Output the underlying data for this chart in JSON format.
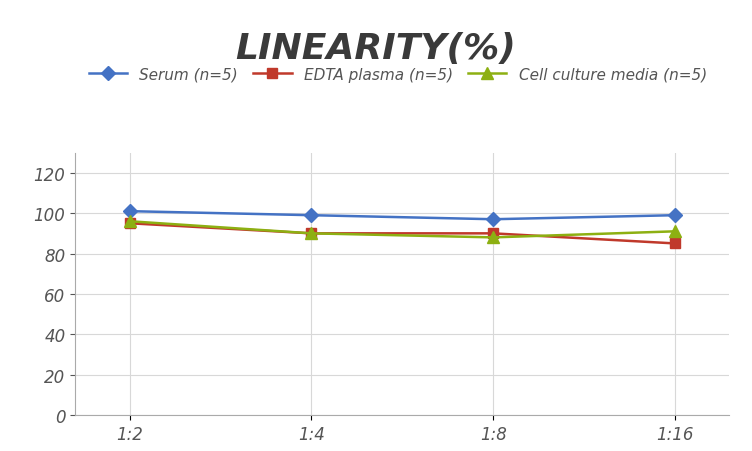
{
  "title": "LINEARITY(%)",
  "title_fontsize": 26,
  "title_fontstyle": "italic",
  "title_fontweight": "bold",
  "title_color": "#3a3a3a",
  "x_labels": [
    "1:2",
    "1:4",
    "1:8",
    "1:16"
  ],
  "x_values": [
    0,
    1,
    2,
    3
  ],
  "ylim": [
    0,
    130
  ],
  "yticks": [
    0,
    20,
    40,
    60,
    80,
    100,
    120
  ],
  "background_color": "#ffffff",
  "series": [
    {
      "label": "Serum (n=5)",
      "values": [
        101,
        99,
        97,
        99
      ],
      "color": "#4472c4",
      "marker": "D",
      "markersize": 7,
      "linewidth": 1.8,
      "zorder": 3
    },
    {
      "label": "EDTA plasma (n=5)",
      "values": [
        95,
        90,
        90,
        85
      ],
      "color": "#c0392b",
      "marker": "s",
      "markersize": 7,
      "linewidth": 1.8,
      "zorder": 3
    },
    {
      "label": "Cell culture media (n=5)",
      "values": [
        96,
        90,
        88,
        91
      ],
      "color": "#8db012",
      "marker": "^",
      "markersize": 8,
      "linewidth": 1.8,
      "zorder": 3
    }
  ],
  "grid_color": "#d8d8d8",
  "grid_linewidth": 0.8,
  "legend_fontsize": 11,
  "tick_fontsize": 12,
  "tick_color": "#555555",
  "spine_color": "#aaaaaa"
}
